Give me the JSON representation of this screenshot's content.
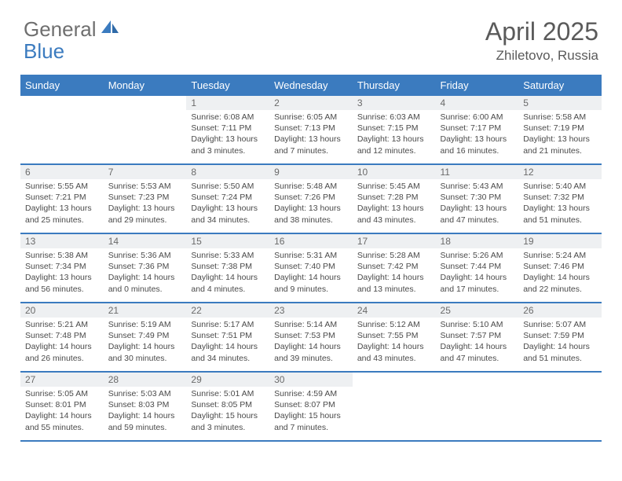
{
  "brand": {
    "part1": "General",
    "part2": "Blue"
  },
  "title": "April 2025",
  "location": "Zhiletovo, Russia",
  "colors": {
    "header_bg": "#3b7bbf",
    "header_text": "#ffffff",
    "daynum_bg": "#eef0f2",
    "text": "#4a4a4a",
    "border": "#3b7bbf"
  },
  "weekdays": [
    "Sunday",
    "Monday",
    "Tuesday",
    "Wednesday",
    "Thursday",
    "Friday",
    "Saturday"
  ],
  "weeks": [
    [
      null,
      null,
      {
        "n": "1",
        "sr": "6:08 AM",
        "ss": "7:11 PM",
        "dh": "13",
        "dm": "3"
      },
      {
        "n": "2",
        "sr": "6:05 AM",
        "ss": "7:13 PM",
        "dh": "13",
        "dm": "7"
      },
      {
        "n": "3",
        "sr": "6:03 AM",
        "ss": "7:15 PM",
        "dh": "13",
        "dm": "12"
      },
      {
        "n": "4",
        "sr": "6:00 AM",
        "ss": "7:17 PM",
        "dh": "13",
        "dm": "16"
      },
      {
        "n": "5",
        "sr": "5:58 AM",
        "ss": "7:19 PM",
        "dh": "13",
        "dm": "21"
      }
    ],
    [
      {
        "n": "6",
        "sr": "5:55 AM",
        "ss": "7:21 PM",
        "dh": "13",
        "dm": "25"
      },
      {
        "n": "7",
        "sr": "5:53 AM",
        "ss": "7:23 PM",
        "dh": "13",
        "dm": "29"
      },
      {
        "n": "8",
        "sr": "5:50 AM",
        "ss": "7:24 PM",
        "dh": "13",
        "dm": "34"
      },
      {
        "n": "9",
        "sr": "5:48 AM",
        "ss": "7:26 PM",
        "dh": "13",
        "dm": "38"
      },
      {
        "n": "10",
        "sr": "5:45 AM",
        "ss": "7:28 PM",
        "dh": "13",
        "dm": "43"
      },
      {
        "n": "11",
        "sr": "5:43 AM",
        "ss": "7:30 PM",
        "dh": "13",
        "dm": "47"
      },
      {
        "n": "12",
        "sr": "5:40 AM",
        "ss": "7:32 PM",
        "dh": "13",
        "dm": "51"
      }
    ],
    [
      {
        "n": "13",
        "sr": "5:38 AM",
        "ss": "7:34 PM",
        "dh": "13",
        "dm": "56"
      },
      {
        "n": "14",
        "sr": "5:36 AM",
        "ss": "7:36 PM",
        "dh": "14",
        "dm": "0"
      },
      {
        "n": "15",
        "sr": "5:33 AM",
        "ss": "7:38 PM",
        "dh": "14",
        "dm": "4"
      },
      {
        "n": "16",
        "sr": "5:31 AM",
        "ss": "7:40 PM",
        "dh": "14",
        "dm": "9"
      },
      {
        "n": "17",
        "sr": "5:28 AM",
        "ss": "7:42 PM",
        "dh": "14",
        "dm": "13"
      },
      {
        "n": "18",
        "sr": "5:26 AM",
        "ss": "7:44 PM",
        "dh": "14",
        "dm": "17"
      },
      {
        "n": "19",
        "sr": "5:24 AM",
        "ss": "7:46 PM",
        "dh": "14",
        "dm": "22"
      }
    ],
    [
      {
        "n": "20",
        "sr": "5:21 AM",
        "ss": "7:48 PM",
        "dh": "14",
        "dm": "26"
      },
      {
        "n": "21",
        "sr": "5:19 AM",
        "ss": "7:49 PM",
        "dh": "14",
        "dm": "30"
      },
      {
        "n": "22",
        "sr": "5:17 AM",
        "ss": "7:51 PM",
        "dh": "14",
        "dm": "34"
      },
      {
        "n": "23",
        "sr": "5:14 AM",
        "ss": "7:53 PM",
        "dh": "14",
        "dm": "39"
      },
      {
        "n": "24",
        "sr": "5:12 AM",
        "ss": "7:55 PM",
        "dh": "14",
        "dm": "43"
      },
      {
        "n": "25",
        "sr": "5:10 AM",
        "ss": "7:57 PM",
        "dh": "14",
        "dm": "47"
      },
      {
        "n": "26",
        "sr": "5:07 AM",
        "ss": "7:59 PM",
        "dh": "14",
        "dm": "51"
      }
    ],
    [
      {
        "n": "27",
        "sr": "5:05 AM",
        "ss": "8:01 PM",
        "dh": "14",
        "dm": "55"
      },
      {
        "n": "28",
        "sr": "5:03 AM",
        "ss": "8:03 PM",
        "dh": "14",
        "dm": "59"
      },
      {
        "n": "29",
        "sr": "5:01 AM",
        "ss": "8:05 PM",
        "dh": "15",
        "dm": "3"
      },
      {
        "n": "30",
        "sr": "4:59 AM",
        "ss": "8:07 PM",
        "dh": "15",
        "dm": "7"
      },
      null,
      null,
      null
    ]
  ]
}
